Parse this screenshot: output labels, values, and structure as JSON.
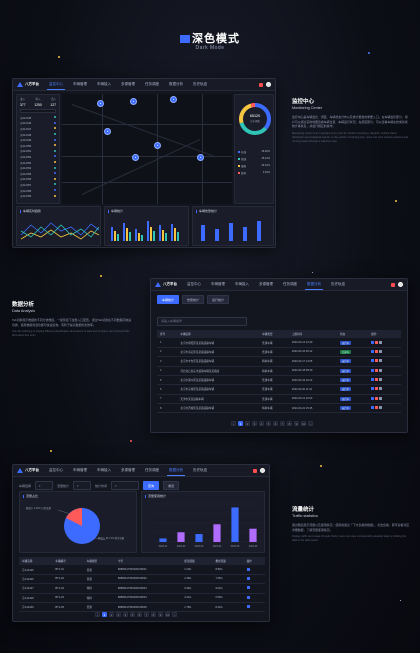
{
  "hero": {
    "title": "深色模式",
    "subtitle": "Dark Mode"
  },
  "app": {
    "brand": "八方平台",
    "nav": [
      "监控中心",
      "车辆管理",
      "车辆接入",
      "多源管理",
      "任务调度",
      "数据分析",
      "历史轨迹"
    ]
  },
  "monitoring": {
    "title": "监控中心",
    "subtitle": "Monitoring Center",
    "body": "监控中心是车辆监控、调度、车辆状态分布以及统计报告的重要入口。在车辆监控部分，用户可以通过实时地图查看车辆位置、车辆运行状况；在调度部分，可以查看车辆在线或离线统计等信息，并进行相应的操作。",
    "body_en": "Monitoring Center is an important entry point for vehicle monitoring, dispatch, vehicle status distribution and statistical reports. In the vehicle monitoring part, users can view vehicle positions and running status through a real-time map.",
    "stats": {
      "left_top": [
        "进入",
        "转入",
        "出入"
      ],
      "left_vals": [
        "377",
        "1250",
        "127"
      ],
      "donut_value": "65120",
      "donut_label": "总车辆数",
      "legend": [
        {
          "label": "在线",
          "value": "36.82%"
        },
        {
          "label": "离线",
          "value": "35.12%"
        },
        {
          "label": "故障",
          "value": "26.10%"
        },
        {
          "label": "保养",
          "value": "9.91%"
        }
      ]
    },
    "vehicle_list": [
      "京A12345",
      "京A12346",
      "京A12347",
      "京A12348",
      "京A12349",
      "京A12350",
      "京A12351",
      "京A12352",
      "京A12353",
      "京A12354",
      "京A12355",
      "京A12356",
      "京A12357",
      "京A12358",
      "京A12359"
    ],
    "panels": [
      "车辆实时趋势",
      "车辆统计",
      "车辆告警统计"
    ]
  },
  "analysis": {
    "title": "数据分析",
    "subtitle": "Data Analysis",
    "body": "Tab切换展示数据的不同分类维度，一级筛选下拉框入口配置，通过Tab切换在不同数据间快速切换，使用数据筛选功能可快速查询，有利于提高数据检索效率。",
    "body2": "Use tab switching to display different classification dimensions of data and configure the first-level filter drop-down box entry.",
    "tabs": [
      "车辆统计",
      "告警统计",
      "运行统计"
    ],
    "search_placeholder": "请输入车辆编号",
    "columns": [
      "序号",
      "车辆名称",
      "车辆类型",
      "上报时间",
      "状态",
      "操作"
    ],
    "rows": [
      {
        "no": "1",
        "name": "北京市朝阳区某某路运输车辆",
        "type": "普通车辆",
        "time": "2023-03-14 12:30",
        "status": "运行中"
      },
      {
        "no": "2",
        "name": "北京市海淀区某某路运输车辆",
        "type": "普通车辆",
        "time": "2023-03-16 09:12",
        "status": "已停车"
      },
      {
        "no": "3",
        "name": "北京市丰台区某某路运输车辆",
        "type": "特种车辆",
        "time": "2023-03-17 14:05",
        "status": "运行中"
      },
      {
        "no": "4",
        "name": "河北省石家庄市运输车辆某某路段",
        "type": "特种车辆",
        "time": "2023-03-18 08:40",
        "status": "运行中"
      },
      {
        "no": "5",
        "name": "北京市通州区某某路运输车辆",
        "type": "普通车辆",
        "time": "2023-03-19 16:22",
        "status": "运行中"
      },
      {
        "no": "6",
        "name": "北京市东城区某某路运输车辆",
        "type": "普通车辆",
        "time": "2023-03-20 11:10",
        "status": "运行中"
      },
      {
        "no": "7",
        "name": "天津市某某运输车辆",
        "type": "普通车辆",
        "time": "2023-03-21 10:03",
        "status": "运行中"
      },
      {
        "no": "8",
        "name": "北京市西城区某某路运输车辆",
        "type": "特种车辆",
        "time": "2023-03-22 15:45",
        "status": "运行中"
      }
    ],
    "pages": [
      "1",
      "2",
      "3",
      "4",
      "5",
      "6",
      "7",
      "8",
      "9",
      "10"
    ]
  },
  "traffic": {
    "title": "流量统计",
    "subtitle": "Traffic statistics",
    "body": "通过图表展示流量以及使用情况，使用者通过「下方表格的数据」，点击查看，即可查看对应详细数据，了解流量使用情况。",
    "body2": "Display traffic and usage through charts; users can view corresponding detailed data by clicking the data in the table below.",
    "filters": {
      "label1": "车辆选择",
      "label2": "流量统计",
      "label3": "统计时间",
      "search_label": "查询",
      "reset_label": "重置"
    },
    "pie_title": "流量占比",
    "bar_title": "流量使用统计",
    "pie_label_a": "数据卡 3.26% 已用流量",
    "pie_label_b": "数据卡 96.74% 剩余流量",
    "columns": [
      "车辆名称",
      "车辆编号",
      "车辆类型",
      "卡号",
      "使用流量",
      "剩余流量",
      "操作"
    ],
    "rows": [
      {
        "name": "京A12345",
        "code": "BT1-01",
        "type": "普通",
        "card": "89860617600000015001",
        "used": "1.20G",
        "left": "8.80G"
      },
      {
        "name": "京A12346",
        "code": "BT1-02",
        "type": "普通",
        "card": "89860617600000015002",
        "used": "2.35G",
        "left": "7.65G"
      },
      {
        "name": "京A12347",
        "code": "BT1-03",
        "type": "特种",
        "card": "89860617600000015003",
        "used": "0.96G",
        "left": "9.04G"
      },
      {
        "name": "京A12348",
        "code": "BT1-04",
        "type": "特种",
        "card": "89860617600000015004",
        "used": "3.41G",
        "left": "6.59G"
      },
      {
        "name": "京A12349",
        "code": "BT1-05",
        "type": "普通",
        "card": "89860617600000015005",
        "used": "1.78G",
        "left": "8.22G"
      }
    ],
    "pages": [
      "1",
      "2",
      "3",
      "4",
      "5",
      "6",
      "7",
      "8",
      "9",
      "10"
    ]
  },
  "chart_data": {
    "type": "bar",
    "categories": [
      "2023-01",
      "2023-02",
      "2023-03",
      "2023-04",
      "2023-05",
      "2023-06"
    ],
    "series": [
      {
        "values": [
          8,
          22,
          18,
          40,
          78,
          30
        ]
      }
    ]
  }
}
